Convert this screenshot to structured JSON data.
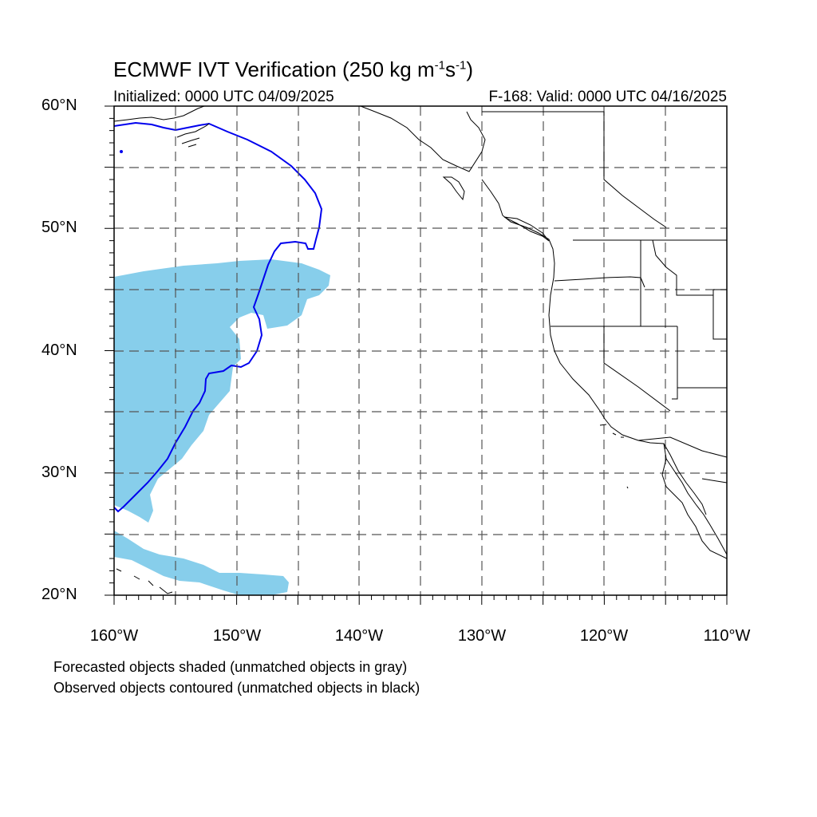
{
  "title": {
    "prefix": "ECMWF IVT Verification (250 kg m",
    "exp1": "-1",
    "mid": "s",
    "exp2": "-1",
    "suffix": ")"
  },
  "subtitle_left": "Initialized: 0000 UTC 04/09/2025",
  "subtitle_right": "F-168: Valid: 0000 UTC 04/16/2025",
  "lat_labels": [
    "60°N",
    "50°N",
    "40°N",
    "30°N",
    "20°N"
  ],
  "lon_labels": [
    "160°W",
    "150°W",
    "140°W",
    "130°W",
    "120°W",
    "110°W"
  ],
  "notes": [
    "Forecasted objects shaded (unmatched objects in gray)",
    "Observed objects contoured (unmatched objects in black)"
  ],
  "colors": {
    "forecast_fill": "#87ceeb",
    "observed_contour": "#0000ee",
    "coast": "#000000",
    "grid": "#555555"
  },
  "extent": {
    "lon_min": -160,
    "lon_max": -110,
    "lat_min": 20,
    "lat_max": 60
  }
}
